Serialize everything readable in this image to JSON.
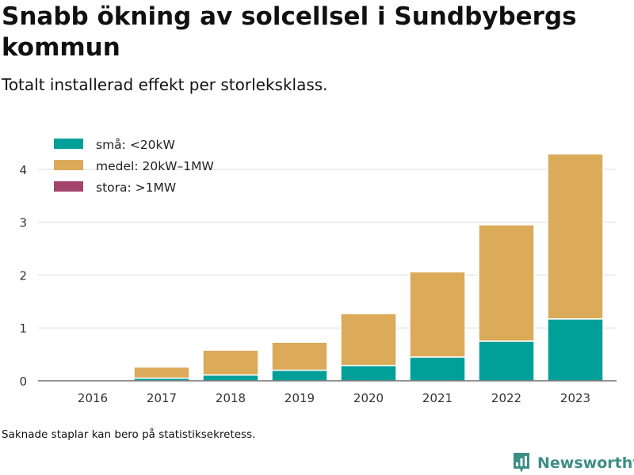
{
  "title": "Snabb ökning av solcellsel i Sundbybergs kommun",
  "subtitle": "Totalt installerad effekt per storleksklass.",
  "footnote": "Saknade staplar kan bero på statistiksekretess.",
  "brand": {
    "name": "Newsworthy",
    "icon": "newsworthy-logo-icon",
    "color": "#3d8e86"
  },
  "chart_data": {
    "type": "bar",
    "stacked": true,
    "categories": [
      "2016",
      "2017",
      "2018",
      "2019",
      "2020",
      "2021",
      "2022",
      "2023"
    ],
    "series": [
      {
        "name": "små: <20kW",
        "color": "#00a098",
        "values": [
          0.0,
          0.05,
          0.11,
          0.2,
          0.29,
          0.45,
          0.75,
          1.17
        ]
      },
      {
        "name": "medel: 20kW–1MW",
        "color": "#dbab5a",
        "values": [
          0.0,
          0.21,
          0.47,
          0.53,
          0.98,
          1.61,
          2.2,
          3.12
        ]
      },
      {
        "name": "stora: >1MW",
        "color": "#a3446a",
        "values": [
          0,
          0,
          0,
          0,
          0,
          0,
          0,
          0
        ]
      }
    ],
    "yticks": [
      0,
      1,
      2,
      3,
      4
    ],
    "ylim": [
      0,
      4.5
    ],
    "xlabel": "",
    "ylabel": "",
    "grid": true,
    "legend_position": "top-left"
  }
}
